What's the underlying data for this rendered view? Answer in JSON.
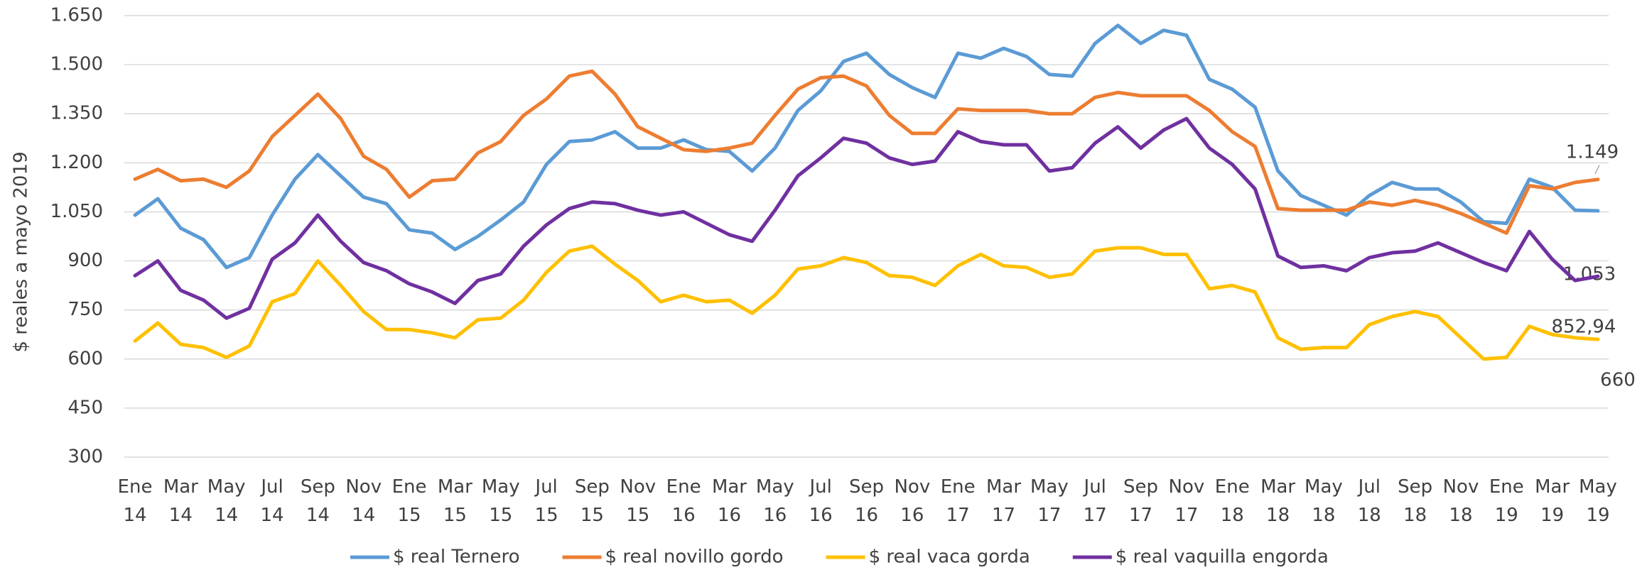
{
  "chart_data": {
    "type": "line",
    "y_label": "$ reales a mayo 2019",
    "categories": [
      "Ene 14",
      null,
      "Mar 14",
      null,
      "May 14",
      null,
      "Jul 14",
      null,
      "Sep 14",
      null,
      "Nov 14",
      null,
      "Ene 15",
      null,
      "Mar 15",
      null,
      "May 15",
      null,
      "Jul 15",
      null,
      "Sep 15",
      null,
      "Nov 15",
      null,
      "Ene 16",
      null,
      "Mar 16",
      null,
      "May 16",
      null,
      "Jul 16",
      null,
      "Sep 16",
      null,
      "Nov 16",
      null,
      "Ene 17",
      null,
      "Mar 17",
      null,
      "May 17",
      null,
      "Jul 17",
      null,
      "Sep 17",
      null,
      "Nov 17",
      null,
      "Ene 18",
      null,
      "Mar 18",
      null,
      "May 18",
      null,
      "Jul 18",
      null,
      "Sep 18",
      null,
      "Nov 18",
      null,
      "Ene 19",
      null,
      "Mar 19",
      null,
      "May 19"
    ],
    "ylim": [
      300,
      1650
    ],
    "yticks": [
      300,
      450,
      600,
      750,
      900,
      {
        "value": 1050,
        "label": "1.050"
      },
      {
        "value": 1200,
        "label": "1.200"
      },
      {
        "value": 1350,
        "label": "1.350"
      },
      {
        "value": 1500,
        "label": "1.500"
      },
      {
        "value": 1650,
        "label": "1.650"
      }
    ],
    "grid": true,
    "legend": "bottom",
    "series": [
      {
        "name": "$ real Ternero",
        "color": "#5b9bd5",
        "values": [
          1040,
          1090,
          1000,
          965,
          880,
          910,
          1040,
          1150,
          1225,
          1160,
          1095,
          1075,
          995,
          985,
          935,
          975,
          1025,
          1080,
          1195,
          1265,
          1270,
          1295,
          1245,
          1245,
          1270,
          1240,
          1235,
          1175,
          1245,
          1360,
          1420,
          1510,
          1535,
          1470,
          1430,
          1400,
          1535,
          1520,
          1550,
          1525,
          1470,
          1465,
          1565,
          1620,
          1565,
          1605,
          1590,
          1455,
          1425,
          1370,
          1175,
          1100,
          1070,
          1040,
          1100,
          1140,
          1120,
          1120,
          1080,
          1020,
          1015,
          1150,
          1125,
          1055,
          1053
        ],
        "value_labels": [
          null,
          null,
          null,
          null,
          null,
          null,
          null,
          null,
          null,
          null,
          null,
          null,
          null,
          null,
          null,
          null,
          null,
          null,
          null,
          null,
          null,
          null,
          null,
          null,
          null,
          null,
          null,
          null,
          null,
          null,
          null,
          null,
          null,
          null,
          null,
          null,
          null,
          null,
          null,
          null,
          null,
          null,
          null,
          null,
          null,
          null,
          null,
          null,
          null,
          null,
          null,
          null,
          null,
          null,
          null,
          null,
          null,
          null,
          null,
          null,
          null,
          null,
          null,
          null,
          "1.053"
        ]
      },
      {
        "name": "$ real novillo gordo",
        "color": "#ed7d31",
        "values": [
          1150,
          1180,
          1145,
          1150,
          1125,
          1175,
          1280,
          1345,
          1410,
          1335,
          1220,
          1180,
          1095,
          1145,
          1150,
          1230,
          1265,
          1345,
          1395,
          1465,
          1480,
          1410,
          1310,
          1275,
          1240,
          1235,
          1245,
          1260,
          1345,
          1425,
          1460,
          1465,
          1435,
          1345,
          1290,
          1290,
          1365,
          1360,
          1360,
          1360,
          1350,
          1350,
          1400,
          1415,
          1405,
          1405,
          1405,
          1360,
          1295,
          1250,
          1060,
          1055,
          1055,
          1055,
          1080,
          1070,
          1085,
          1070,
          1045,
          1015,
          985,
          1130,
          1120,
          1140,
          1149
        ],
        "value_labels": [
          null,
          null,
          null,
          null,
          null,
          null,
          null,
          null,
          null,
          null,
          null,
          null,
          null,
          null,
          null,
          null,
          null,
          null,
          null,
          null,
          null,
          null,
          null,
          null,
          null,
          null,
          null,
          null,
          null,
          null,
          null,
          null,
          null,
          null,
          null,
          null,
          null,
          null,
          null,
          null,
          null,
          null,
          null,
          null,
          null,
          null,
          null,
          null,
          null,
          null,
          null,
          null,
          null,
          null,
          null,
          null,
          null,
          null,
          null,
          null,
          null,
          null,
          null,
          null,
          "1.149"
        ]
      },
      {
        "name": "$ real vaca gorda",
        "color": "#ffc000",
        "values": [
          655,
          710,
          645,
          635,
          605,
          640,
          775,
          800,
          900,
          825,
          745,
          690,
          690,
          680,
          665,
          720,
          725,
          780,
          865,
          930,
          945,
          890,
          840,
          775,
          795,
          775,
          780,
          740,
          795,
          875,
          885,
          910,
          895,
          855,
          850,
          825,
          885,
          920,
          885,
          880,
          850,
          860,
          930,
          940,
          940,
          920,
          920,
          815,
          825,
          805,
          665,
          630,
          635,
          635,
          705,
          730,
          745,
          730,
          665,
          600,
          605,
          700,
          675,
          665,
          660
        ],
        "value_labels": [
          null,
          null,
          null,
          null,
          null,
          null,
          null,
          null,
          null,
          null,
          null,
          null,
          null,
          null,
          null,
          null,
          null,
          null,
          null,
          null,
          null,
          null,
          null,
          null,
          null,
          null,
          null,
          null,
          null,
          null,
          null,
          null,
          null,
          null,
          null,
          null,
          null,
          null,
          null,
          null,
          null,
          null,
          null,
          null,
          null,
          null,
          null,
          null,
          null,
          null,
          null,
          null,
          null,
          null,
          null,
          null,
          null,
          null,
          null,
          null,
          null,
          null,
          null,
          null,
          "660"
        ]
      },
      {
        "name": "$ real vaquilla engorda",
        "color": "#7030a0",
        "values": [
          855,
          900,
          810,
          780,
          725,
          755,
          905,
          955,
          1040,
          960,
          895,
          870,
          830,
          805,
          770,
          840,
          860,
          945,
          1010,
          1060,
          1080,
          1075,
          1055,
          1040,
          1050,
          1015,
          980,
          960,
          1055,
          1160,
          1215,
          1275,
          1260,
          1215,
          1195,
          1205,
          1295,
          1265,
          1255,
          1255,
          1175,
          1185,
          1260,
          1310,
          1245,
          1300,
          1335,
          1245,
          1195,
          1120,
          915,
          880,
          885,
          870,
          910,
          925,
          930,
          955,
          925,
          895,
          870,
          990,
          905,
          840,
          852.94
        ],
        "value_labels": [
          null,
          null,
          null,
          null,
          null,
          null,
          null,
          null,
          null,
          null,
          null,
          null,
          null,
          null,
          null,
          null,
          null,
          null,
          null,
          null,
          null,
          null,
          null,
          null,
          null,
          null,
          null,
          null,
          null,
          null,
          null,
          null,
          null,
          null,
          null,
          null,
          null,
          null,
          null,
          null,
          null,
          null,
          null,
          null,
          null,
          null,
          null,
          null,
          null,
          null,
          null,
          null,
          null,
          null,
          null,
          null,
          null,
          null,
          null,
          null,
          null,
          null,
          null,
          null,
          "852,94"
        ]
      }
    ]
  }
}
